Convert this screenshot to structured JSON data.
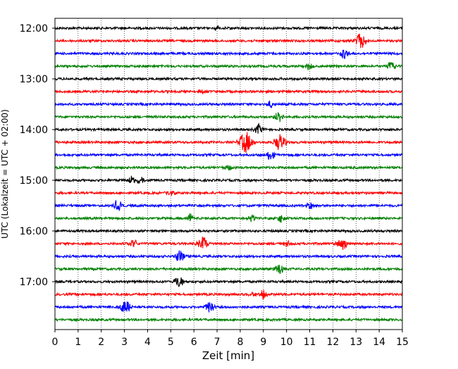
{
  "chart_data": {
    "type": "line",
    "title": "",
    "xlabel": "Zeit  [min]",
    "ylabel": "UTC (Lokalzeit = UTC + 02:00)",
    "xlim": [
      0,
      15
    ],
    "x_ticks": [
      "0",
      "1",
      "2",
      "3",
      "4",
      "5",
      "6",
      "7",
      "8",
      "9",
      "10",
      "11",
      "12",
      "13",
      "14",
      "15"
    ],
    "y_tick_labels": [
      "12:00",
      "13:00",
      "14:00",
      "15:00",
      "16:00",
      "17:00"
    ],
    "grid": "vertical dotted",
    "trace_interval_min": 15,
    "colors": [
      "#000000",
      "#ff0000",
      "#0000ff",
      "#008000"
    ],
    "series": [
      {
        "start": "12:00",
        "color": "#000000",
        "events": [
          {
            "x": 7.0,
            "amp": 0.25
          }
        ]
      },
      {
        "start": "12:15",
        "color": "#ff0000",
        "events": [
          {
            "x": 13.2,
            "amp": 0.9
          }
        ]
      },
      {
        "start": "12:30",
        "color": "#0000ff",
        "events": [
          {
            "x": 12.5,
            "amp": 0.6
          }
        ]
      },
      {
        "start": "12:45",
        "color": "#008000",
        "events": [
          {
            "x": 11.0,
            "amp": 0.45
          },
          {
            "x": 14.5,
            "amp": 0.5
          }
        ]
      },
      {
        "start": "13:00",
        "color": "#000000",
        "events": []
      },
      {
        "start": "13:15",
        "color": "#ff0000",
        "events": [
          {
            "x": 6.3,
            "amp": 0.25
          }
        ]
      },
      {
        "start": "13:30",
        "color": "#0000ff",
        "events": [
          {
            "x": 9.3,
            "amp": 0.4
          }
        ]
      },
      {
        "start": "13:45",
        "color": "#008000",
        "events": [
          {
            "x": 9.7,
            "amp": 0.7
          }
        ]
      },
      {
        "start": "14:00",
        "color": "#000000",
        "events": [
          {
            "x": 8.8,
            "amp": 0.6
          }
        ]
      },
      {
        "start": "14:15",
        "color": "#ff0000",
        "events": [
          {
            "x": 8.25,
            "amp": 1.3
          },
          {
            "x": 9.7,
            "amp": 1.0
          }
        ]
      },
      {
        "start": "14:30",
        "color": "#0000ff",
        "events": [
          {
            "x": 9.3,
            "amp": 0.6
          }
        ]
      },
      {
        "start": "14:45",
        "color": "#008000",
        "events": [
          {
            "x": 7.5,
            "amp": 0.35
          }
        ]
      },
      {
        "start": "15:00",
        "color": "#000000",
        "events": [
          {
            "x": 3.3,
            "amp": 0.5
          },
          {
            "x": 3.7,
            "amp": 0.5
          }
        ]
      },
      {
        "start": "15:15",
        "color": "#ff0000",
        "events": [
          {
            "x": 5.0,
            "amp": 0.35
          }
        ]
      },
      {
        "start": "15:30",
        "color": "#0000ff",
        "events": [
          {
            "x": 2.7,
            "amp": 0.6
          },
          {
            "x": 11.0,
            "amp": 0.45
          }
        ]
      },
      {
        "start": "15:45",
        "color": "#008000",
        "events": [
          {
            "x": 5.8,
            "amp": 0.5
          },
          {
            "x": 8.5,
            "amp": 0.45
          },
          {
            "x": 9.8,
            "amp": 0.45
          }
        ]
      },
      {
        "start": "16:00",
        "color": "#000000",
        "events": []
      },
      {
        "start": "16:15",
        "color": "#ff0000",
        "events": [
          {
            "x": 3.4,
            "amp": 0.5
          },
          {
            "x": 6.4,
            "amp": 0.8
          },
          {
            "x": 10.0,
            "amp": 0.4
          },
          {
            "x": 12.4,
            "amp": 0.8
          }
        ]
      },
      {
        "start": "16:30",
        "color": "#0000ff",
        "events": [
          {
            "x": 5.4,
            "amp": 0.7
          }
        ]
      },
      {
        "start": "16:45",
        "color": "#008000",
        "events": [
          {
            "x": 9.7,
            "amp": 0.65
          }
        ]
      },
      {
        "start": "17:00",
        "color": "#000000",
        "events": [
          {
            "x": 5.35,
            "amp": 0.7
          }
        ]
      },
      {
        "start": "17:15",
        "color": "#ff0000",
        "events": [
          {
            "x": 8.5,
            "amp": 0.4
          },
          {
            "x": 9.0,
            "amp": 0.55
          }
        ]
      },
      {
        "start": "17:30",
        "color": "#0000ff",
        "events": [
          {
            "x": 3.05,
            "amp": 0.85
          },
          {
            "x": 6.7,
            "amp": 0.75
          }
        ]
      },
      {
        "start": "17:45",
        "color": "#008000",
        "events": []
      }
    ]
  }
}
